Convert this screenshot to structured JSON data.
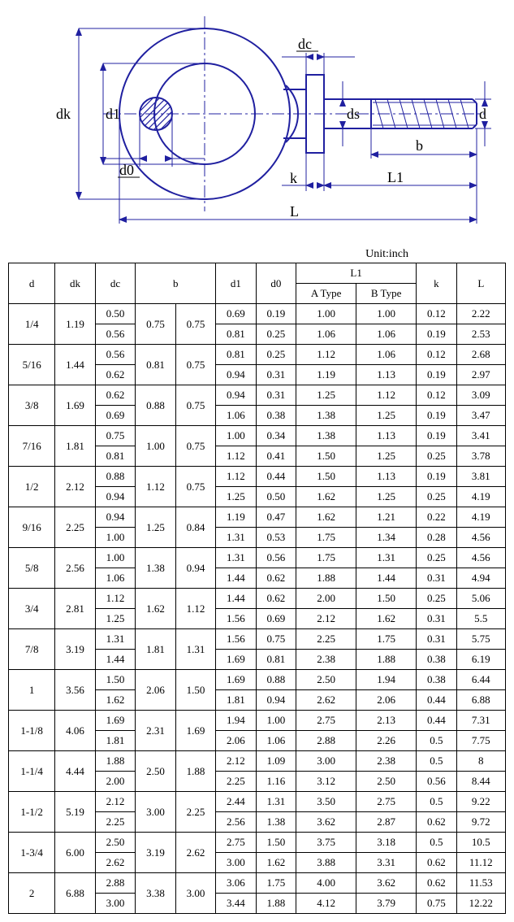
{
  "diagram": {
    "labels": {
      "dk": "dk",
      "d1": "d1",
      "d0": "d0",
      "dc": "dc",
      "ds": "ds",
      "d": "d",
      "b": "b",
      "k": "k",
      "L1": "L1",
      "L": "L"
    },
    "stroke_color": "#2020a0",
    "hatch_color": "#2020a0",
    "center_line_color": "#2020a0"
  },
  "table": {
    "unit_label": "Unit:inch",
    "headers": {
      "d": "d",
      "dk": "dk",
      "dc": "dc",
      "b": "b",
      "d1": "d1",
      "d0": "d0",
      "L1": "L1",
      "L1_a": "A Type",
      "L1_b": "B Type",
      "k": "k",
      "L": "L"
    },
    "col_widths": {
      "d": "48px",
      "dk": "48px",
      "dc": "48px",
      "b1": "48px",
      "b2": "48px",
      "d1": "48px",
      "d0": "48px",
      "L1a": "48px",
      "L1b": "48px",
      "k": "48px",
      "L": "48px"
    },
    "rows": [
      {
        "d": "1/4",
        "dk": "1.19",
        "dc": [
          "0.50",
          "0.56"
        ],
        "b1": "0.75",
        "b2": "0.75",
        "d1": [
          "0.69",
          "0.81"
        ],
        "d0": [
          "0.19",
          "0.25"
        ],
        "L1a": [
          "1.00",
          "1.06"
        ],
        "L1b": [
          "1.00",
          "1.06"
        ],
        "k": [
          "0.12",
          "0.19"
        ],
        "L": [
          "2.22",
          "2.53"
        ]
      },
      {
        "d": "5/16",
        "dk": "1.44",
        "dc": [
          "0.56",
          "0.62"
        ],
        "b1": "0.81",
        "b2": "0.75",
        "d1": [
          "0.81",
          "0.94"
        ],
        "d0": [
          "0.25",
          "0.31"
        ],
        "L1a": [
          "1.12",
          "1.19"
        ],
        "L1b": [
          "1.06",
          "1.13"
        ],
        "k": [
          "0.12",
          "0.19"
        ],
        "L": [
          "2.68",
          "2.97"
        ]
      },
      {
        "d": "3/8",
        "dk": "1.69",
        "dc": [
          "0.62",
          "0.69"
        ],
        "b1": "0.88",
        "b2": "0.75",
        "d1": [
          "0.94",
          "1.06"
        ],
        "d0": [
          "0.31",
          "0.38"
        ],
        "L1a": [
          "1.25",
          "1.38"
        ],
        "L1b": [
          "1.12",
          "1.25"
        ],
        "k": [
          "0.12",
          "0.19"
        ],
        "L": [
          "3.09",
          "3.47"
        ]
      },
      {
        "d": "7/16",
        "dk": "1.81",
        "dc": [
          "0.75",
          "0.81"
        ],
        "b1": "1.00",
        "b2": "0.75",
        "d1": [
          "1.00",
          "1.12"
        ],
        "d0": [
          "0.34",
          "0.41"
        ],
        "L1a": [
          "1.38",
          "1.50"
        ],
        "L1b": [
          "1.13",
          "1.25"
        ],
        "k": [
          "0.19",
          "0.25"
        ],
        "L": [
          "3.41",
          "3.78"
        ]
      },
      {
        "d": "1/2",
        "dk": "2.12",
        "dc": [
          "0.88",
          "0.94"
        ],
        "b1": "1.12",
        "b2": "0.75",
        "d1": [
          "1.12",
          "1.25"
        ],
        "d0": [
          "0.44",
          "0.50"
        ],
        "L1a": [
          "1.50",
          "1.62"
        ],
        "L1b": [
          "1.13",
          "1.25"
        ],
        "k": [
          "0.19",
          "0.25"
        ],
        "L": [
          "3.81",
          "4.19"
        ]
      },
      {
        "d": "9/16",
        "dk": "2.25",
        "dc": [
          "0.94",
          "1.00"
        ],
        "b1": "1.25",
        "b2": "0.84",
        "d1": [
          "1.19",
          "1.31"
        ],
        "d0": [
          "0.47",
          "0.53"
        ],
        "L1a": [
          "1.62",
          "1.75"
        ],
        "L1b": [
          "1.21",
          "1.34"
        ],
        "k": [
          "0.22",
          "0.28"
        ],
        "L": [
          "4.19",
          "4.56"
        ]
      },
      {
        "d": "5/8",
        "dk": "2.56",
        "dc": [
          "1.00",
          "1.06"
        ],
        "b1": "1.38",
        "b2": "0.94",
        "d1": [
          "1.31",
          "1.44"
        ],
        "d0": [
          "0.56",
          "0.62"
        ],
        "L1a": [
          "1.75",
          "1.88"
        ],
        "L1b": [
          "1.31",
          "1.44"
        ],
        "k": [
          "0.25",
          "0.31"
        ],
        "L": [
          "4.56",
          "4.94"
        ]
      },
      {
        "d": "3/4",
        "dk": "2.81",
        "dc": [
          "1.12",
          "1.25"
        ],
        "b1": "1.62",
        "b2": "1.12",
        "d1": [
          "1.44",
          "1.56"
        ],
        "d0": [
          "0.62",
          "0.69"
        ],
        "L1a": [
          "2.00",
          "2.12"
        ],
        "L1b": [
          "1.50",
          "1.62"
        ],
        "k": [
          "0.25",
          "0.31"
        ],
        "L": [
          "5.06",
          "5.5"
        ]
      },
      {
        "d": "7/8",
        "dk": "3.19",
        "dc": [
          "1.31",
          "1.44"
        ],
        "b1": "1.81",
        "b2": "1.31",
        "d1": [
          "1.56",
          "1.69"
        ],
        "d0": [
          "0.75",
          "0.81"
        ],
        "L1a": [
          "2.25",
          "2.38"
        ],
        "L1b": [
          "1.75",
          "1.88"
        ],
        "k": [
          "0.31",
          "0.38"
        ],
        "L": [
          "5.75",
          "6.19"
        ]
      },
      {
        "d": "1",
        "dk": "3.56",
        "dc": [
          "1.50",
          "1.62"
        ],
        "b1": "2.06",
        "b2": "1.50",
        "d1": [
          "1.69",
          "1.81"
        ],
        "d0": [
          "0.88",
          "0.94"
        ],
        "L1a": [
          "2.50",
          "2.62"
        ],
        "L1b": [
          "1.94",
          "2.06"
        ],
        "k": [
          "0.38",
          "0.44"
        ],
        "L": [
          "6.44",
          "6.88"
        ]
      },
      {
        "d": "1-1/8",
        "dk": "4.06",
        "dc": [
          "1.69",
          "1.81"
        ],
        "b1": "2.31",
        "b2": "1.69",
        "d1": [
          "1.94",
          "2.06"
        ],
        "d0": [
          "1.00",
          "1.06"
        ],
        "L1a": [
          "2.75",
          "2.88"
        ],
        "L1b": [
          "2.13",
          "2.26"
        ],
        "k": [
          "0.44",
          "0.5"
        ],
        "L": [
          "7.31",
          "7.75"
        ]
      },
      {
        "d": "1-1/4",
        "dk": "4.44",
        "dc": [
          "1.88",
          "2.00"
        ],
        "b1": "2.50",
        "b2": "1.88",
        "d1": [
          "2.12",
          "2.25"
        ],
        "d0": [
          "1.09",
          "1.16"
        ],
        "L1a": [
          "3.00",
          "3.12"
        ],
        "L1b": [
          "2.38",
          "2.50"
        ],
        "k": [
          "0.5",
          "0.56"
        ],
        "L": [
          "8",
          "8.44"
        ]
      },
      {
        "d": "1-1/2",
        "dk": "5.19",
        "dc": [
          "2.12",
          "2.25"
        ],
        "b1": "3.00",
        "b2": "2.25",
        "d1": [
          "2.44",
          "2.56"
        ],
        "d0": [
          "1.31",
          "1.38"
        ],
        "L1a": [
          "3.50",
          "3.62"
        ],
        "L1b": [
          "2.75",
          "2.87"
        ],
        "k": [
          "0.5",
          "0.62"
        ],
        "L": [
          "9.22",
          "9.72"
        ]
      },
      {
        "d": "1-3/4",
        "dk": "6.00",
        "dc": [
          "2.50",
          "2.62"
        ],
        "b1": "3.19",
        "b2": "2.62",
        "d1": [
          "2.75",
          "3.00"
        ],
        "d0": [
          "1.50",
          "1.62"
        ],
        "L1a": [
          "3.75",
          "3.88"
        ],
        "L1b": [
          "3.18",
          "3.31"
        ],
        "k": [
          "0.5",
          "0.62"
        ],
        "L": [
          "10.5",
          "11.12"
        ]
      },
      {
        "d": "2",
        "dk": "6.88",
        "dc": [
          "2.88",
          "3.00"
        ],
        "b1": "3.38",
        "b2": "3.00",
        "d1": [
          "3.06",
          "3.44"
        ],
        "d0": [
          "1.75",
          "1.88"
        ],
        "L1a": [
          "4.00",
          "4.12"
        ],
        "L1b": [
          "3.62",
          "3.79"
        ],
        "k": [
          "0.62",
          "0.75"
        ],
        "L": [
          "11.53",
          "12.22"
        ]
      }
    ]
  }
}
